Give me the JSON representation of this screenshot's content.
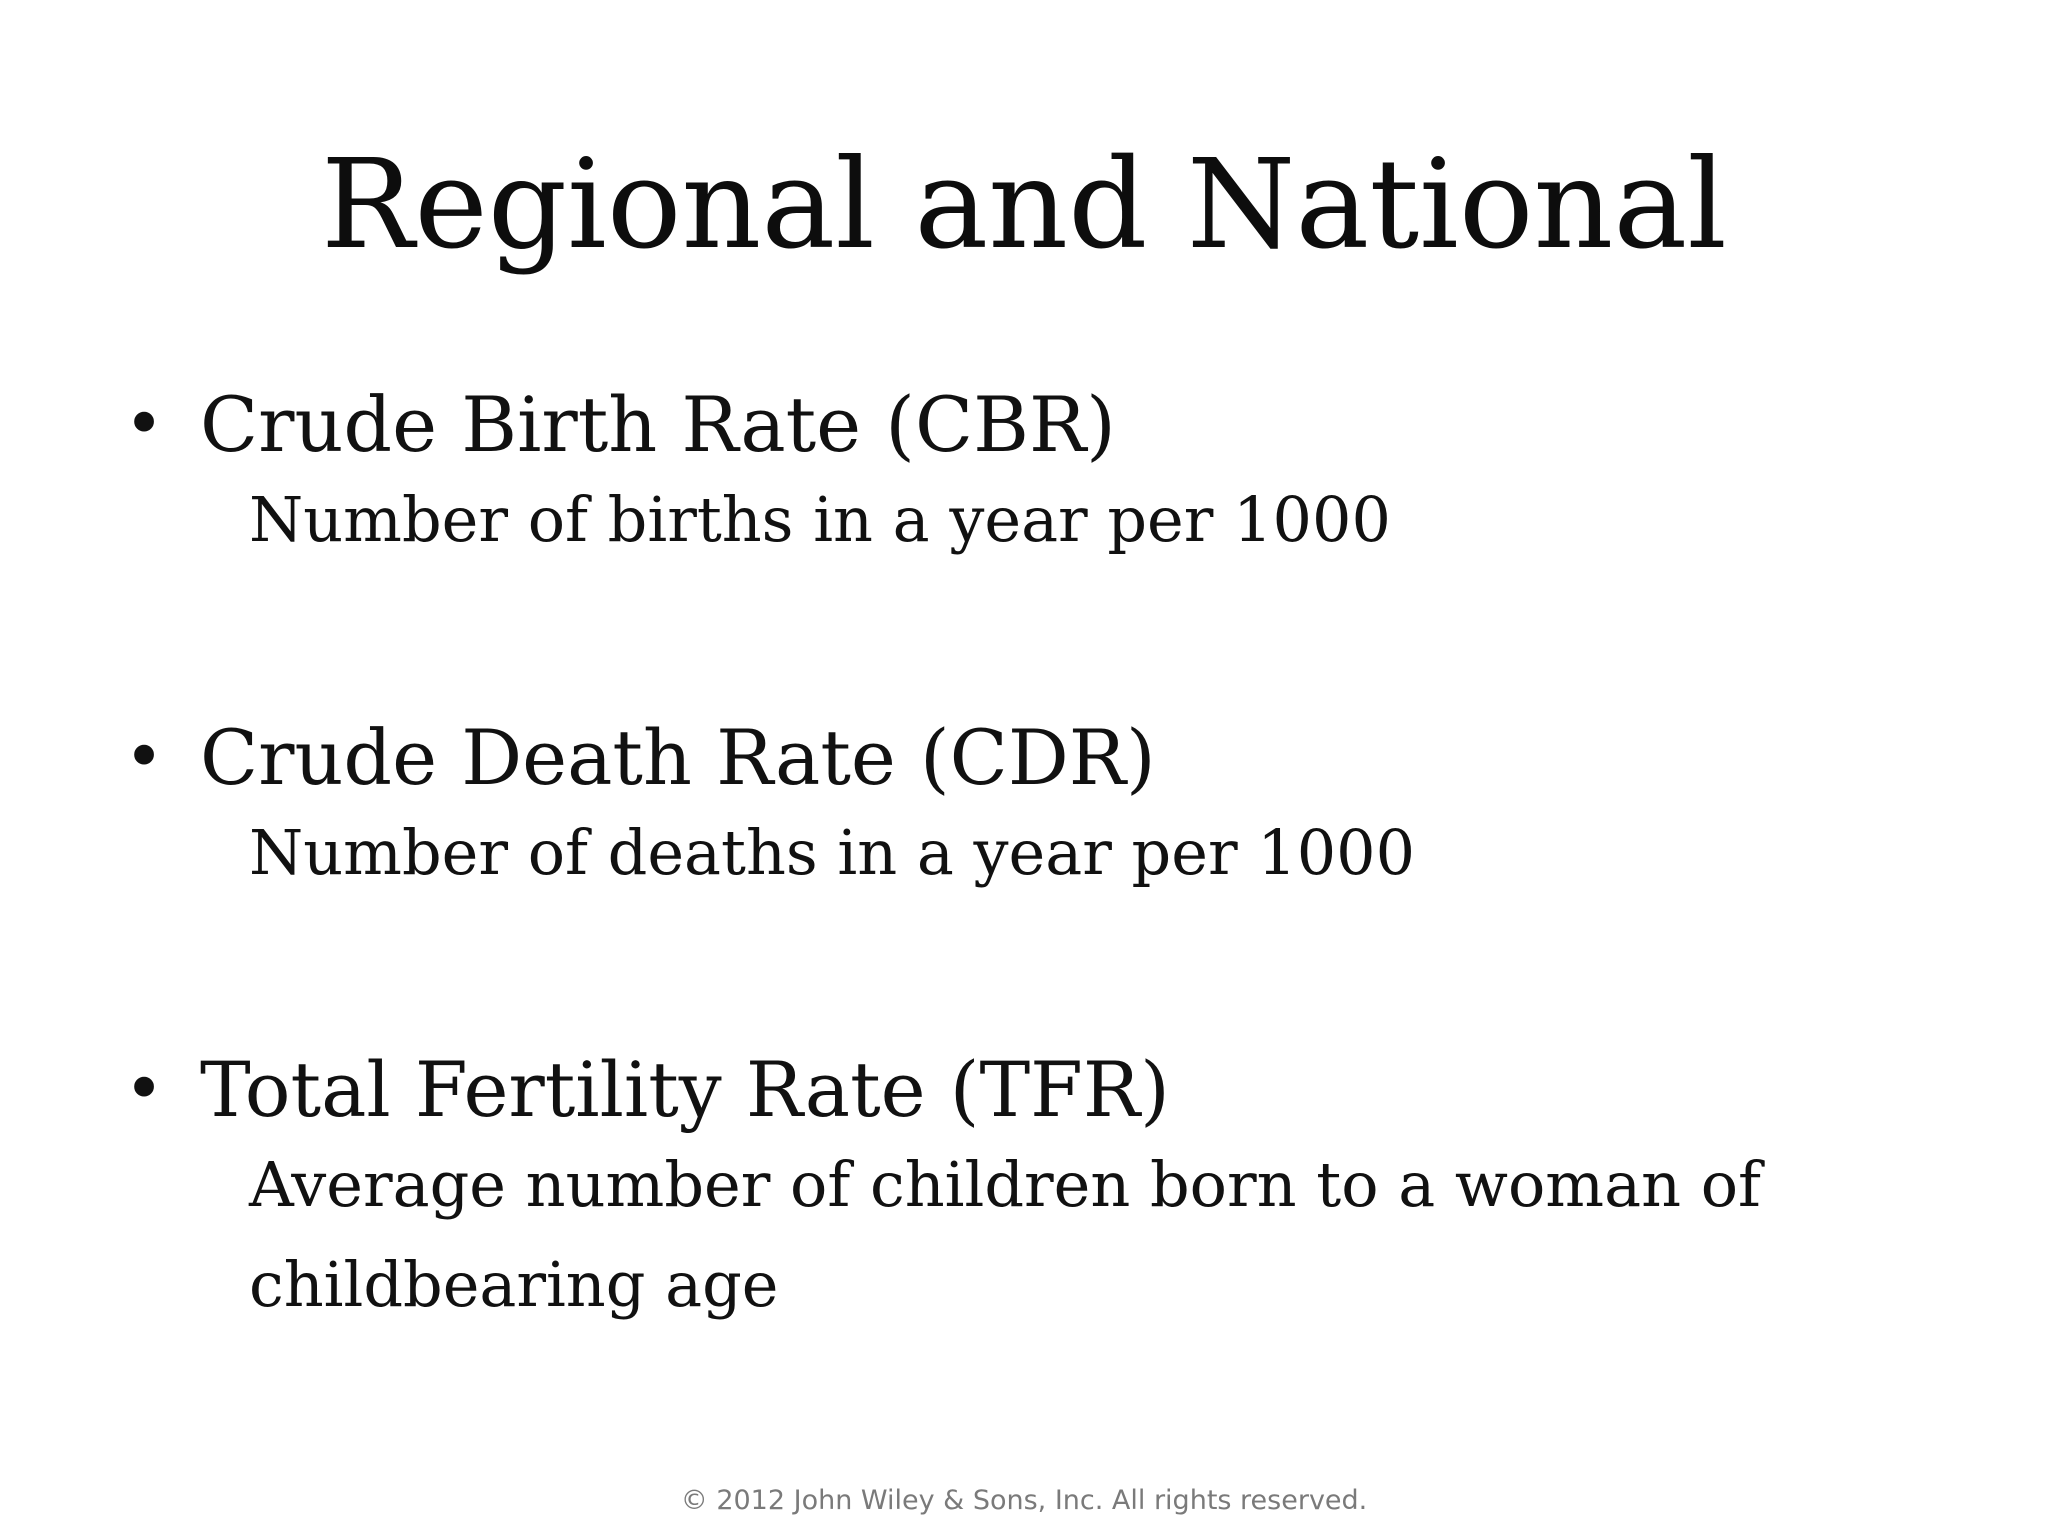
{
  "slide": {
    "title": "Regional and National",
    "bullets": [
      {
        "marker": "•",
        "heading": "Crude Birth Rate (CBR)",
        "detail": "Number of births in a year per 1000"
      },
      {
        "marker": "•",
        "heading": "Crude Death Rate (CDR)",
        "detail": "Number of deaths in a year per 1000"
      },
      {
        "marker": "•",
        "heading": "Total Fertility Rate (TFR)",
        "detail": "Average number of children born to a woman of childbearing age"
      }
    ],
    "footer": "© 2012 John Wiley & Sons, Inc. All rights reserved."
  }
}
